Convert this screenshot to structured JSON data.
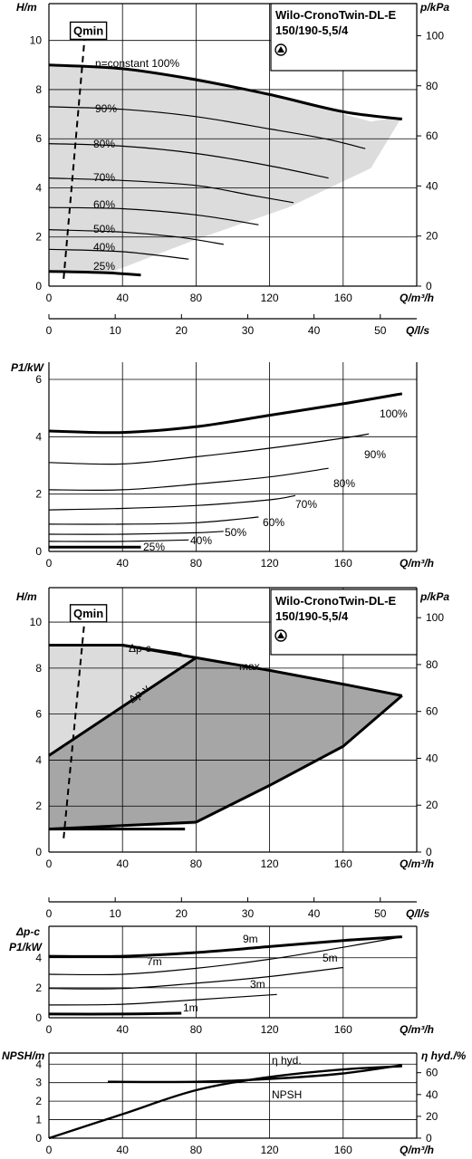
{
  "model_label": [
    "Wilo-CronoTwin-DL-E",
    "150/190-5,5/4"
  ],
  "chart_data": [
    {
      "id": "hq_speed",
      "type": "line",
      "title": "Wilo-CronoTwin-DL-E 150/190-5,5/4",
      "xlabel": "Q/m³/h",
      "ylabel": "H/m",
      "y2label": "p/kPa",
      "xlim": [
        0,
        200
      ],
      "ylim": [
        0,
        11.5
      ],
      "xticks": [
        0,
        40,
        80,
        120,
        160
      ],
      "yticks": [
        0,
        2,
        4,
        6,
        8,
        10
      ],
      "y2ticks": [
        0,
        20,
        40,
        60,
        80,
        100
      ],
      "grid": true,
      "qmin_label": "Qmin",
      "qmin_line": {
        "x": [
          8,
          20
        ],
        "y": [
          0.3,
          10.6
        ]
      },
      "operating_area": {
        "x": [
          0,
          35,
          80,
          130,
          175,
          192,
          192,
          175,
          130,
          80,
          35,
          0
        ],
        "y": [
          9.0,
          8.9,
          8.5,
          7.6,
          6.7,
          6.9,
          6.9,
          4.8,
          3.2,
          1.9,
          0.6,
          0.6
        ]
      },
      "series": [
        {
          "name": "n=constant 100%",
          "x": [
            0,
            40,
            80,
            120,
            160,
            192
          ],
          "y": [
            9.0,
            8.85,
            8.4,
            7.8,
            7.1,
            6.8
          ]
        },
        {
          "name": "90%",
          "x": [
            0,
            40,
            80,
            120,
            150,
            172
          ],
          "y": [
            7.3,
            7.2,
            6.9,
            6.4,
            6.0,
            5.6
          ]
        },
        {
          "name": "80%",
          "x": [
            0,
            40,
            80,
            120,
            152
          ],
          "y": [
            5.8,
            5.7,
            5.4,
            4.9,
            4.4
          ]
        },
        {
          "name": "70%",
          "x": [
            0,
            40,
            80,
            110,
            133
          ],
          "y": [
            4.4,
            4.3,
            4.1,
            3.7,
            3.4
          ]
        },
        {
          "name": "60%",
          "x": [
            0,
            40,
            80,
            114
          ],
          "y": [
            3.2,
            3.15,
            2.9,
            2.5
          ]
        },
        {
          "name": "50%",
          "x": [
            0,
            40,
            70,
            95
          ],
          "y": [
            2.3,
            2.2,
            2.0,
            1.7
          ]
        },
        {
          "name": "40%",
          "x": [
            0,
            40,
            76
          ],
          "y": [
            1.5,
            1.4,
            1.1
          ]
        },
        {
          "name": "25%",
          "x": [
            0,
            30,
            50
          ],
          "y": [
            0.6,
            0.55,
            0.45
          ]
        }
      ],
      "thick_series": [
        "n=constant 100%",
        "25%"
      ]
    },
    {
      "id": "p1_speed",
      "type": "line",
      "xlabel": "Q/m³/h",
      "ylabel": "P1/kW",
      "x2label": "Q/l/s",
      "xlim": [
        0,
        200
      ],
      "ylim": [
        0,
        6.6
      ],
      "xticks": [
        0,
        40,
        80,
        120,
        160
      ],
      "x2ticks": [
        0,
        10,
        20,
        30,
        40,
        50
      ],
      "yticks": [
        0,
        2,
        4,
        6
      ],
      "grid": true,
      "series": [
        {
          "name": "100%",
          "x": [
            0,
            40,
            80,
            120,
            160,
            192
          ],
          "y": [
            4.2,
            4.15,
            4.35,
            4.75,
            5.15,
            5.5
          ]
        },
        {
          "name": "90%",
          "x": [
            0,
            40,
            80,
            120,
            160,
            174
          ],
          "y": [
            3.1,
            3.05,
            3.3,
            3.6,
            3.95,
            4.1
          ]
        },
        {
          "name": "80%",
          "x": [
            0,
            40,
            80,
            120,
            152
          ],
          "y": [
            2.15,
            2.15,
            2.35,
            2.6,
            2.9
          ]
        },
        {
          "name": "70%",
          "x": [
            0,
            40,
            80,
            120,
            134
          ],
          "y": [
            1.45,
            1.5,
            1.6,
            1.8,
            1.95
          ]
        },
        {
          "name": "60%",
          "x": [
            0,
            40,
            80,
            114
          ],
          "y": [
            0.95,
            0.95,
            1.0,
            1.2
          ]
        },
        {
          "name": "50%",
          "x": [
            0,
            40,
            80,
            95
          ],
          "y": [
            0.6,
            0.6,
            0.65,
            0.7
          ]
        },
        {
          "name": "40%",
          "x": [
            0,
            40,
            76
          ],
          "y": [
            0.35,
            0.35,
            0.4
          ]
        },
        {
          "name": "25%",
          "x": [
            0,
            30,
            50
          ],
          "y": [
            0.15,
            0.15,
            0.15
          ]
        }
      ],
      "thick_series": [
        "100%",
        "25%"
      ]
    },
    {
      "id": "hq_control",
      "type": "line",
      "title": "Wilo-CronoTwin-DL-E 150/190-5,5/4",
      "xlabel": "Q/m³/h",
      "ylabel": "H/m",
      "y2label": "p/kPa",
      "x2label": "Q/l/s",
      "xlim": [
        0,
        200
      ],
      "ylim": [
        0,
        11.5
      ],
      "xticks": [
        0,
        40,
        80,
        120,
        160
      ],
      "x2ticks": [
        0,
        10,
        20,
        30,
        40,
        50
      ],
      "yticks": [
        0,
        2,
        4,
        6,
        8,
        10
      ],
      "y2ticks": [
        0,
        20,
        40,
        60,
        80,
        100
      ],
      "grid": true,
      "qmin_label": "Qmin",
      "qmin_line": {
        "x": [
          8,
          20
        ],
        "y": [
          0.6,
          10.6
        ]
      },
      "light_area": {
        "x": [
          0,
          40,
          80,
          80,
          0
        ],
        "y": [
          9.0,
          9.0,
          8.45,
          1.2,
          1.0
        ]
      },
      "dark_area": {
        "x": [
          0,
          80,
          120,
          160,
          192,
          160,
          120,
          80,
          0
        ],
        "y": [
          4.2,
          8.45,
          7.9,
          7.3,
          6.8,
          4.6,
          2.9,
          1.3,
          1.0
        ]
      },
      "series": [
        {
          "name": "max.",
          "x": [
            0,
            40,
            80,
            120,
            160,
            192
          ],
          "y": [
            9.0,
            9.0,
            8.45,
            7.9,
            7.3,
            6.8
          ]
        },
        {
          "name": "Δp-c",
          "x": [
            0,
            40,
            72
          ],
          "y": [
            9.0,
            9.0,
            8.6
          ]
        },
        {
          "name": "Δp-v",
          "x": [
            0,
            80
          ],
          "y": [
            4.2,
            8.45
          ]
        },
        {
          "name": "",
          "x": [
            192,
            160,
            120,
            80
          ],
          "y": [
            6.8,
            4.6,
            2.9,
            1.3
          ]
        },
        {
          "name": "",
          "x": [
            0,
            80
          ],
          "y": [
            1.0,
            1.3
          ]
        },
        {
          "name": "",
          "x": [
            0,
            74
          ],
          "y": [
            1.0,
            1.0
          ]
        }
      ],
      "annotations": [
        "Δp-c",
        "Δp-v",
        "max."
      ]
    },
    {
      "id": "p1_control",
      "type": "line",
      "xlabel": "Q/m³/h",
      "ylabel": "Δp-c P1/kW",
      "xlim": [
        0,
        200
      ],
      "ylim": [
        0,
        6.1
      ],
      "xticks": [
        0,
        40,
        80,
        120,
        160
      ],
      "yticks": [
        0,
        2,
        4
      ],
      "grid": true,
      "series": [
        {
          "name": "9m",
          "x": [
            0,
            40,
            80,
            120,
            160,
            192
          ],
          "y": [
            4.1,
            4.1,
            4.35,
            4.75,
            5.15,
            5.4
          ]
        },
        {
          "name": "7m",
          "x": [
            0,
            40,
            80,
            120,
            160,
            192
          ],
          "y": [
            2.9,
            2.9,
            3.3,
            3.9,
            4.7,
            5.4
          ]
        },
        {
          "name": "5m",
          "x": [
            0,
            40,
            80,
            120,
            160
          ],
          "y": [
            1.95,
            1.95,
            2.3,
            2.75,
            3.35
          ]
        },
        {
          "name": "3m",
          "x": [
            0,
            40,
            80,
            124
          ],
          "y": [
            0.85,
            0.9,
            1.2,
            1.55
          ]
        },
        {
          "name": "1m",
          "x": [
            0,
            40,
            72
          ],
          "y": [
            0.25,
            0.25,
            0.3
          ]
        }
      ],
      "thick_series": [
        "9m",
        "1m"
      ]
    },
    {
      "id": "npsh_eff",
      "type": "line",
      "xlabel": "Q/m³/h",
      "ylabel": "NPSH/m",
      "y2label": "η hyd./%",
      "xlim": [
        0,
        200
      ],
      "ylim": [
        0,
        4.6
      ],
      "xticks": [
        0,
        40,
        80,
        120,
        160
      ],
      "yticks": [
        0,
        1,
        2,
        3,
        4
      ],
      "y2ticks": [
        0,
        20,
        40,
        60
      ],
      "grid": true,
      "series": [
        {
          "name": "η hyd.",
          "axis": "right",
          "x": [
            0,
            40,
            80,
            120,
            160,
            192
          ],
          "y": [
            0,
            22,
            44,
            56,
            63,
            66
          ]
        },
        {
          "name": "NPSH",
          "axis": "left",
          "x": [
            32,
            80,
            120,
            160,
            192
          ],
          "y": [
            3.05,
            3.05,
            3.2,
            3.5,
            3.95
          ]
        }
      ]
    }
  ]
}
